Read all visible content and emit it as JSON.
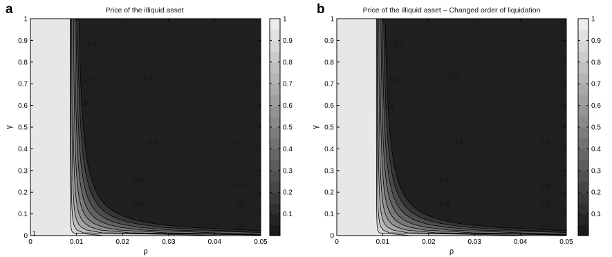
{
  "panels": [
    {
      "letter": "a",
      "title": "Price of the illiquid asset"
    },
    {
      "letter": "b",
      "title": "Price of the illiquid asset – Changed order of liquidation"
    }
  ],
  "colors": {
    "low": "#141414",
    "high": "#f2f2f2",
    "contour": "#000000"
  },
  "chart_data": [
    {
      "type": "heatmap",
      "title": "Price of the illiquid asset",
      "xlabel": "ρ",
      "ylabel": "γ",
      "xlim": [
        0,
        0.05
      ],
      "ylim": [
        0,
        1
      ],
      "xticks": [
        "0",
        "0.01",
        "0.02",
        "0.03",
        "0.04",
        "0.05"
      ],
      "yticks": [
        "0",
        "0.1",
        "0.2",
        "0.3",
        "0.4",
        "0.5",
        "0.6",
        "0.7",
        "0.8",
        "0.9",
        "1"
      ],
      "colorbar": {
        "range": [
          0,
          1
        ],
        "ticks": [
          "0.1",
          "0.2",
          "0.3",
          "0.4",
          "0.5",
          "0.6",
          "0.7",
          "0.8",
          "0.9",
          "1"
        ]
      },
      "contour_levels": [
        0.1,
        0.2,
        0.3,
        0.4,
        0.5,
        0.6,
        0.7,
        0.8,
        0.9
      ],
      "contour_labels": [
        {
          "text": "0.4",
          "x": 0.0135,
          "y": 0.88
        },
        {
          "text": "0.6",
          "x": 0.0125,
          "y": 0.72
        },
        {
          "text": "0.8",
          "x": 0.0115,
          "y": 0.61
        },
        {
          "text": "0.2",
          "x": 0.0255,
          "y": 0.73
        },
        {
          "text": "0.4",
          "x": 0.0265,
          "y": 0.43
        },
        {
          "text": "0.6",
          "x": 0.0235,
          "y": 0.26
        },
        {
          "text": "0.8",
          "x": 0.0235,
          "y": 0.14
        },
        {
          "text": "0.2",
          "x": 0.0455,
          "y": 0.43
        },
        {
          "text": "0.4",
          "x": 0.0455,
          "y": 0.23
        },
        {
          "text": "0.6",
          "x": 0.0455,
          "y": 0.14
        },
        {
          "text": "0.8",
          "x": 0.0455,
          "y": 0.05
        },
        {
          "text": "1",
          "x": 0.0008,
          "y": 0.01
        }
      ]
    },
    {
      "type": "heatmap",
      "title": "Price of the illiquid asset – Changed order of liquidation",
      "xlabel": "ρ",
      "ylabel": "γ",
      "xlim": [
        0,
        0.05
      ],
      "ylim": [
        0,
        1
      ],
      "xticks": [
        "0",
        "0.01",
        "0.02",
        "0.03",
        "0.04",
        "0.05"
      ],
      "yticks": [
        "0",
        "0.1",
        "0.2",
        "0.3",
        "0.4",
        "0.5",
        "0.6",
        "0.7",
        "0.8",
        "0.9",
        "1"
      ],
      "colorbar": {
        "range": [
          0,
          1
        ],
        "ticks": [
          "0.1",
          "0.2",
          "0.3",
          "0.4",
          "0.5",
          "0.6",
          "0.7",
          "0.8",
          "0.9",
          "1"
        ]
      },
      "contour_levels": [
        0.1,
        0.2,
        0.3,
        0.4,
        0.5,
        0.6,
        0.7,
        0.8,
        0.9
      ],
      "contour_labels": [
        {
          "text": "0.4",
          "x": 0.0135,
          "y": 0.88
        },
        {
          "text": "0.6",
          "x": 0.0125,
          "y": 0.72
        },
        {
          "text": "0.8",
          "x": 0.0115,
          "y": 0.59
        },
        {
          "text": "0.2",
          "x": 0.0255,
          "y": 0.73
        },
        {
          "text": "0.4",
          "x": 0.0265,
          "y": 0.43
        },
        {
          "text": "0.6",
          "x": 0.0235,
          "y": 0.26
        },
        {
          "text": "0.8",
          "x": 0.0235,
          "y": 0.14
        },
        {
          "text": "0.2",
          "x": 0.0455,
          "y": 0.43
        },
        {
          "text": "0.4",
          "x": 0.0455,
          "y": 0.23
        },
        {
          "text": "0.6",
          "x": 0.0455,
          "y": 0.14
        },
        {
          "text": "0.8",
          "x": 0.0455,
          "y": 0.05
        }
      ]
    }
  ]
}
